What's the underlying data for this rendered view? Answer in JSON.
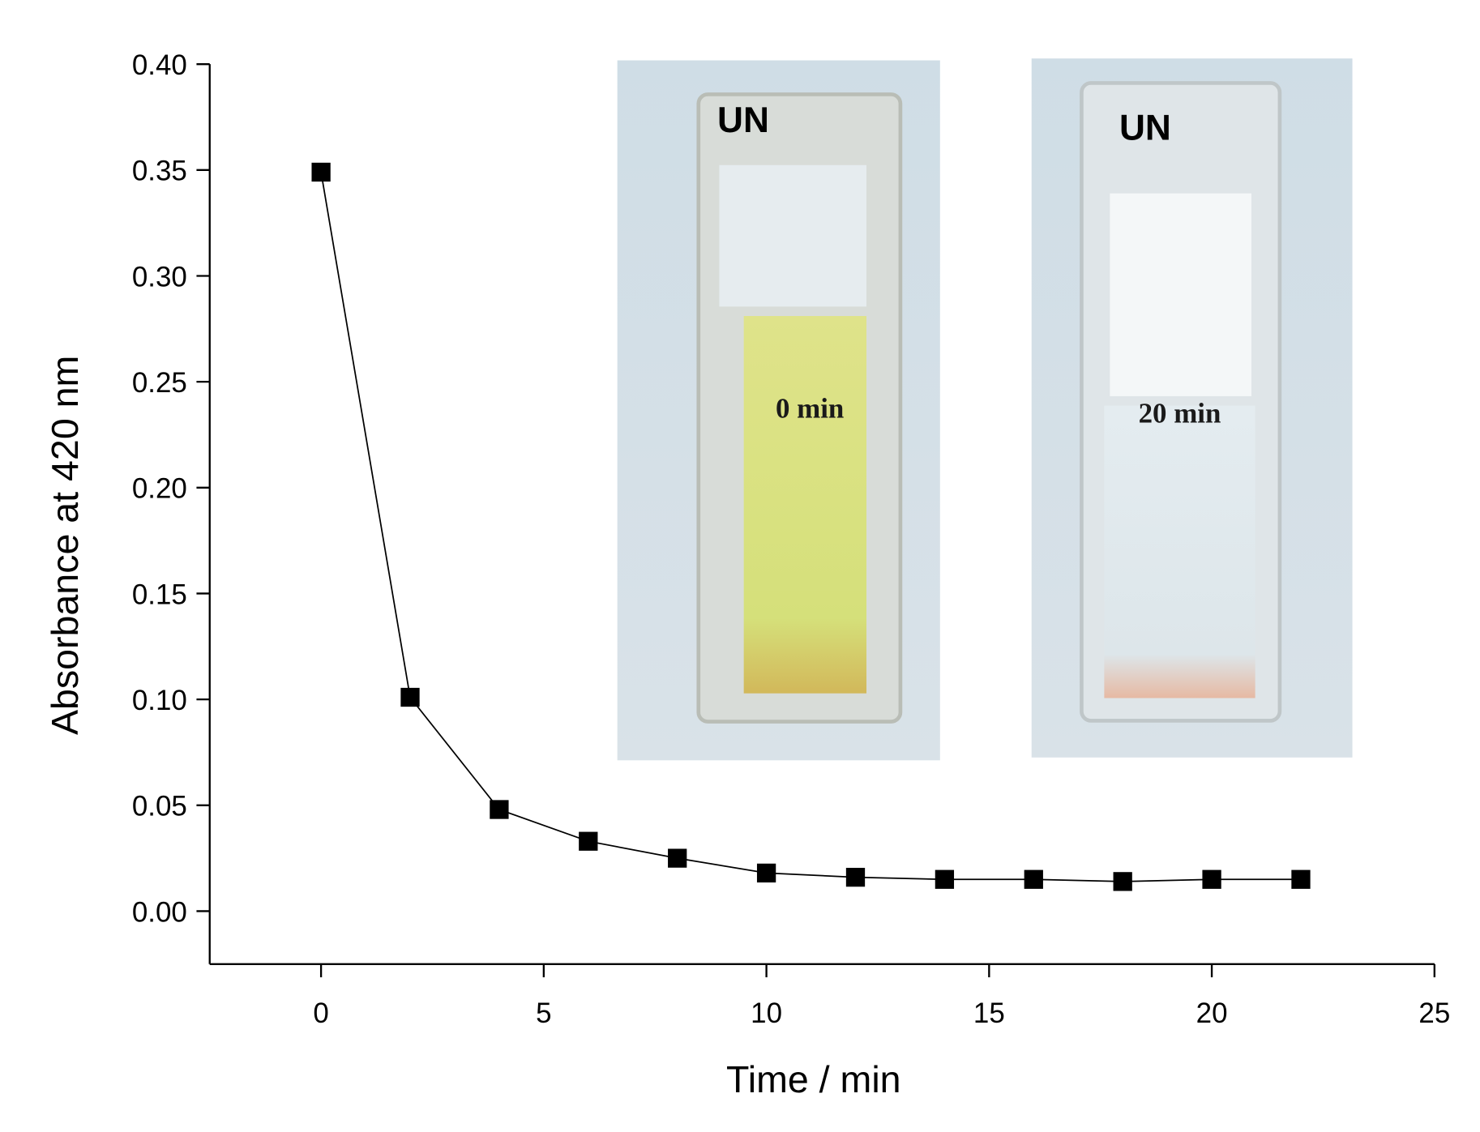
{
  "chart_data": {
    "type": "line",
    "xlabel": "Time / min",
    "ylabel": "Absorbance at 420 nm",
    "x": [
      0,
      2,
      4,
      6,
      8,
      10,
      12,
      14,
      16,
      18,
      20,
      22
    ],
    "series": [
      {
        "color": "#000000",
        "values": [
          0.349,
          0.101,
          0.048,
          0.033,
          0.025,
          0.018,
          0.016,
          0.015,
          0.015,
          0.014,
          0.015,
          0.015
        ]
      }
    ],
    "xlim": [
      -2.5,
      25
    ],
    "ylim": [
      -0.025,
      0.4
    ],
    "xticks": [
      0,
      5,
      10,
      15,
      20,
      25
    ],
    "yticks": [
      {
        "value": 0,
        "label": "0.00"
      },
      {
        "value": 0.05,
        "label": "0.05"
      },
      {
        "value": 0.1,
        "label": "0.10"
      },
      {
        "value": 0.15,
        "label": "0.15"
      },
      {
        "value": 0.2,
        "label": "0.20"
      },
      {
        "value": 0.25,
        "label": "0.25"
      },
      {
        "value": 0.3,
        "label": "0.30"
      },
      {
        "value": 0.35,
        "label": "0.35"
      },
      {
        "value": 0.4,
        "label": "0.40"
      }
    ],
    "grid": false,
    "annotations": [
      {
        "text": "0 min"
      },
      {
        "text": "20 min"
      }
    ]
  }
}
